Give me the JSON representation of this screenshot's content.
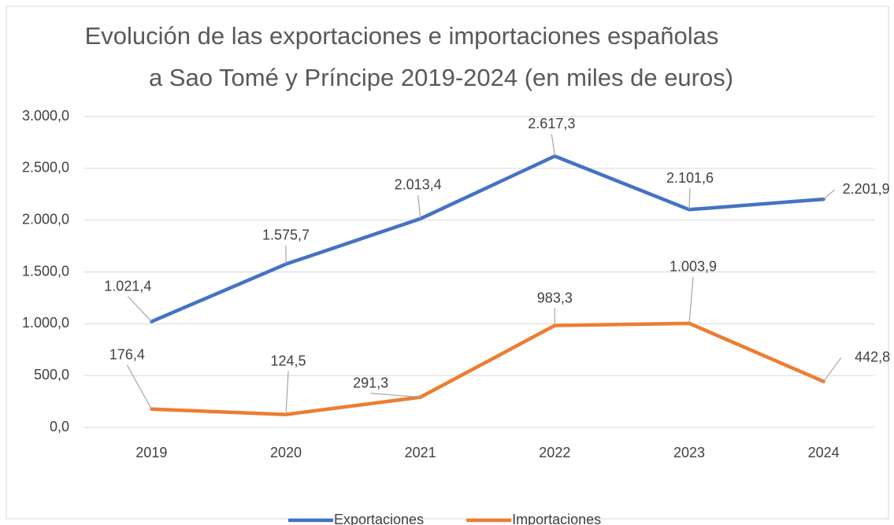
{
  "chart_data": {
    "type": "line",
    "title": [
      "Evolución de las exportaciones e importaciones españolas",
      "a Sao Tomé y Príncipe 2019-2024 (en miles de euros)"
    ],
    "categories": [
      "2019",
      "2020",
      "2021",
      "2022",
      "2023",
      "2024"
    ],
    "series": [
      {
        "name": "Exportaciones",
        "color": "#4472c4",
        "values": [
          1021.4,
          1575.7,
          2013.4,
          2617.3,
          2101.6,
          2201.9
        ],
        "value_labels": [
          "1.021,4",
          "1.575,7",
          "2.013,4",
          "2.617,3",
          "2.101,6",
          "2.201,9"
        ]
      },
      {
        "name": "Importaciones",
        "color": "#ed7d31",
        "values": [
          176.4,
          124.5,
          291.3,
          983.3,
          1003.9,
          442.8
        ],
        "value_labels": [
          "176,4",
          "124,5",
          "291,3",
          "983,3",
          "1.003,9",
          "442,8"
        ]
      }
    ],
    "ylim": [
      0,
      3000
    ],
    "yticks": [
      {
        "value": 0,
        "label": "0,0"
      },
      {
        "value": 500,
        "label": "500,0"
      },
      {
        "value": 1000,
        "label": "1.000,0"
      },
      {
        "value": 1500,
        "label": "1.500,0"
      },
      {
        "value": 2000,
        "label": "2.000,0"
      },
      {
        "value": 2500,
        "label": "2.500,0"
      },
      {
        "value": 3000,
        "label": "3.000,0"
      }
    ],
    "grid": true,
    "legend": "bottom"
  }
}
